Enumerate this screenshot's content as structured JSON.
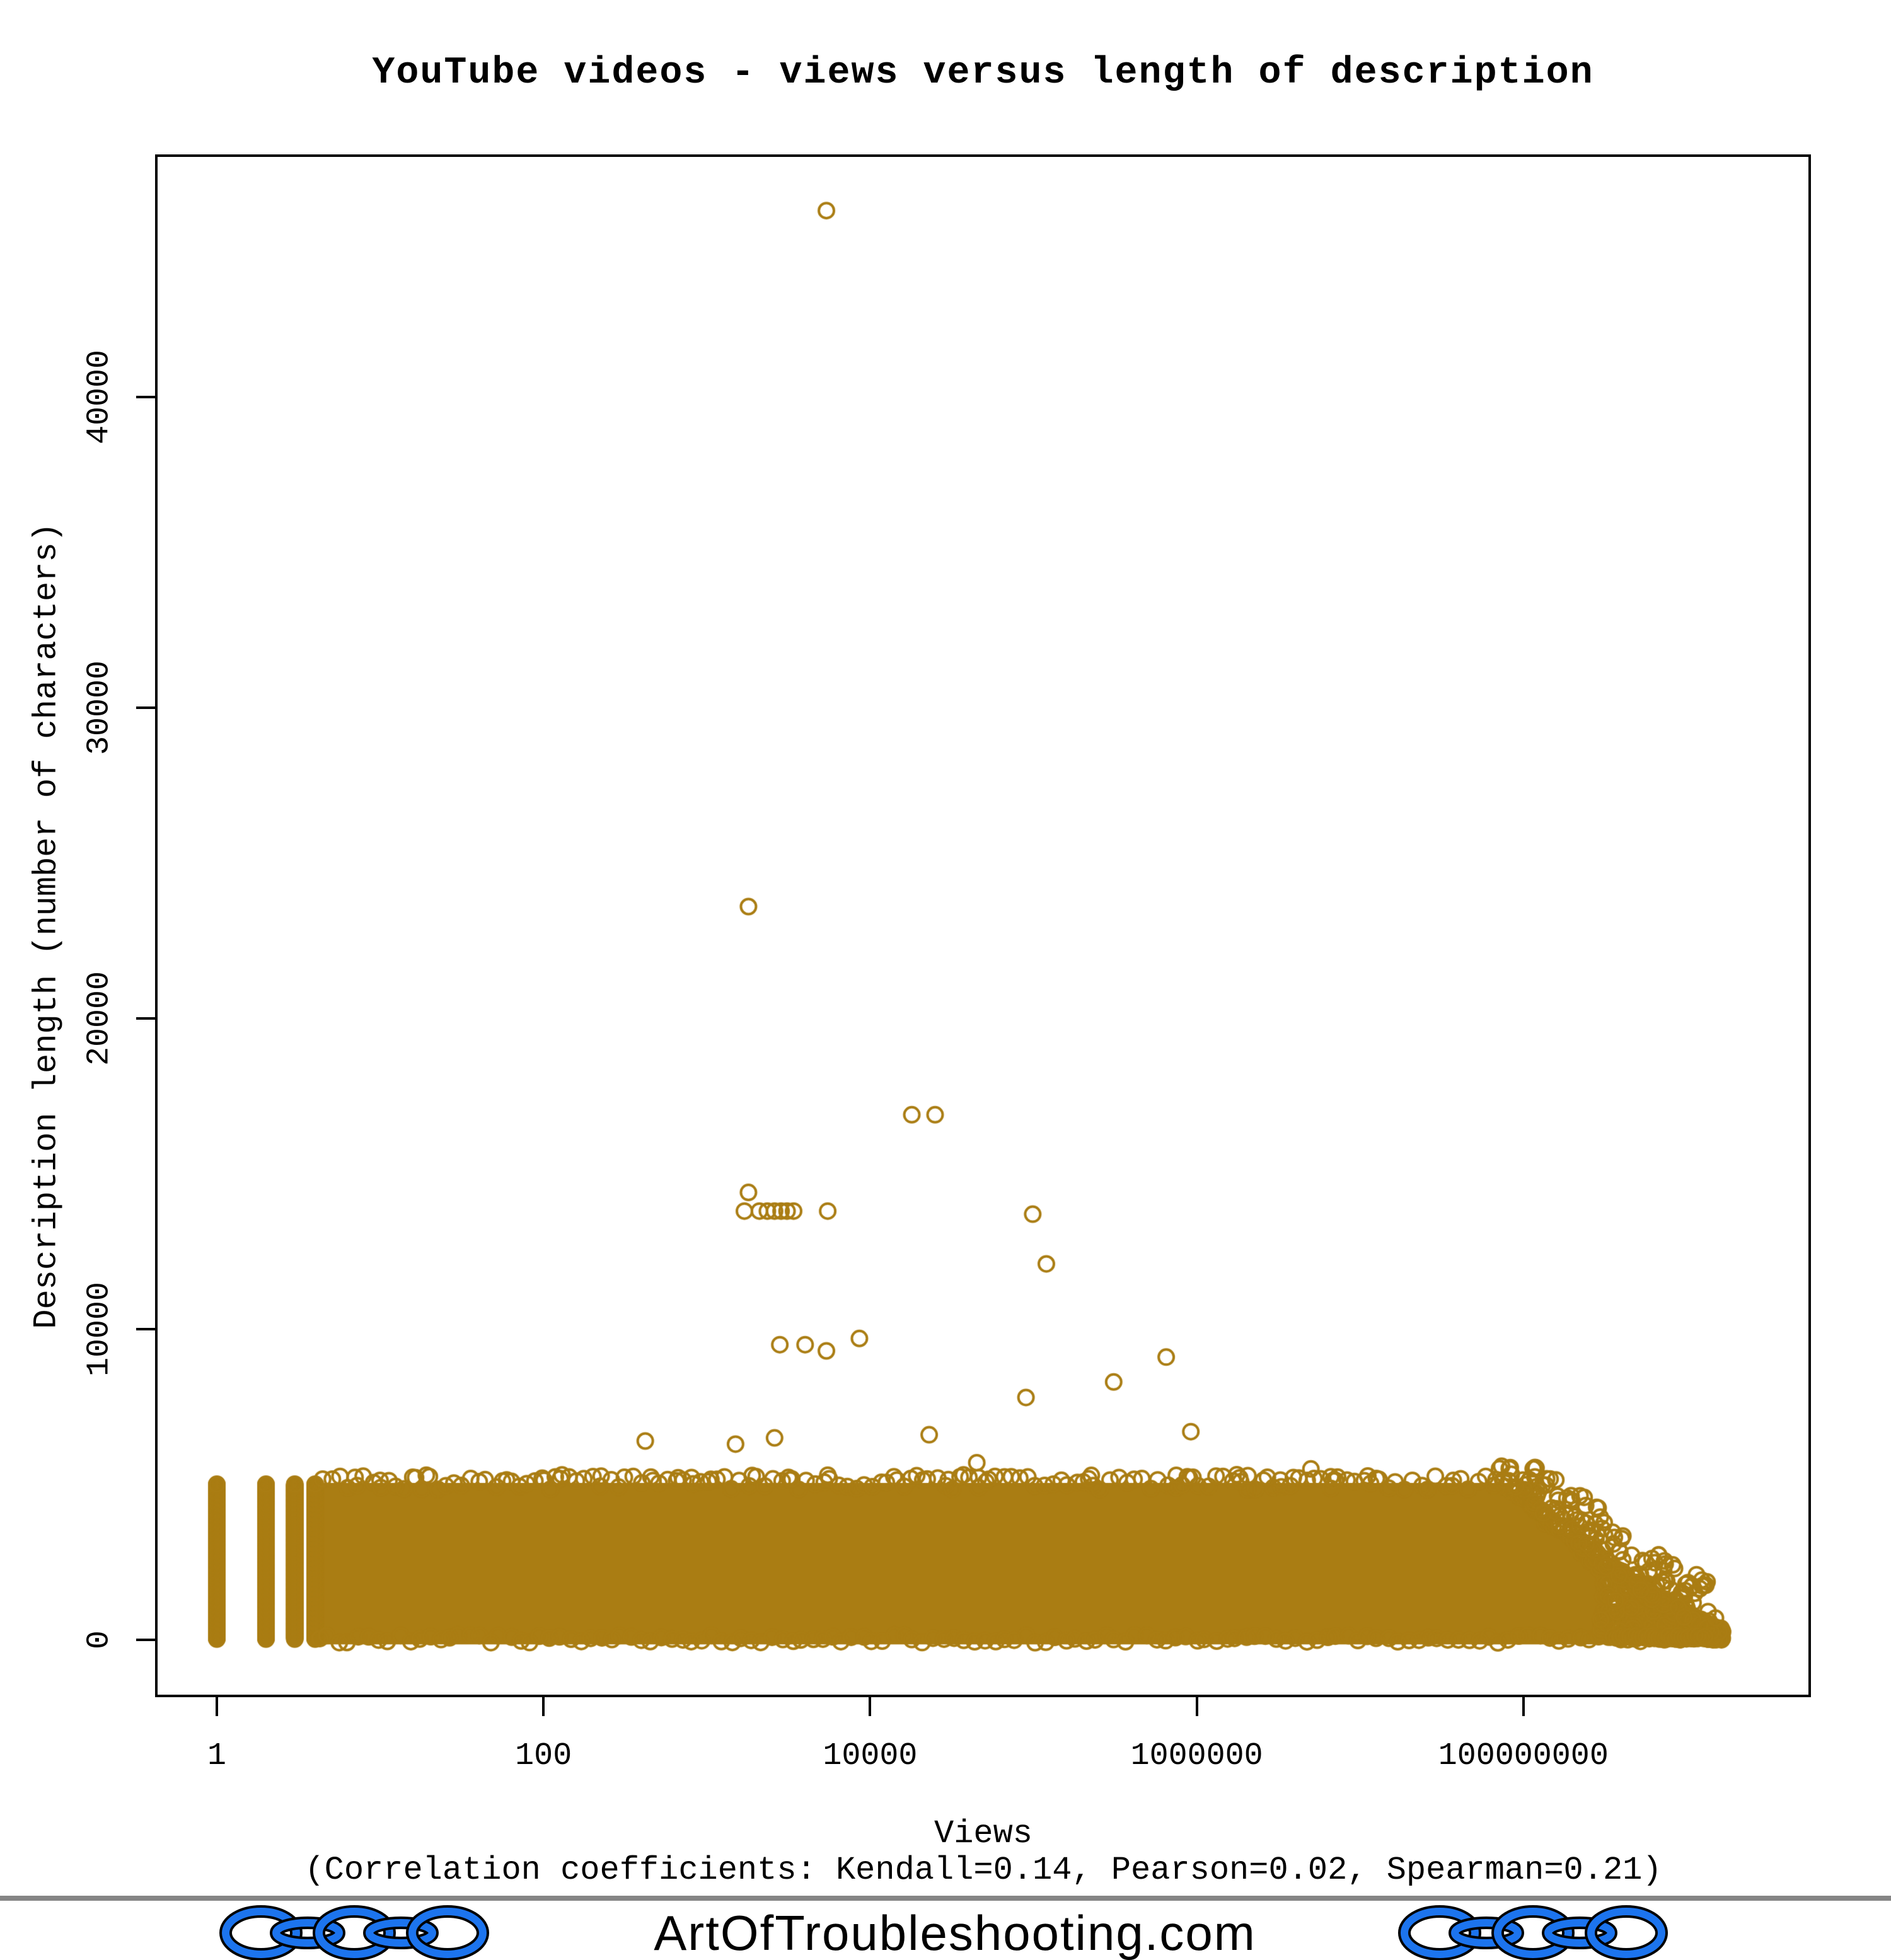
{
  "title": "YouTube videos - views versus length of description",
  "footer": {
    "site": "ArtOfTroubleshooting.com",
    "chain_color": "#1C74EE",
    "divider_color": "#858585"
  },
  "chart_data": {
    "type": "scatter",
    "title": "YouTube videos - views versus length of description",
    "xlabel": "Views",
    "x_sublabel": "(Correlation coefficients: Kendall=0.14, Pearson=0.02, Spearman=0.21)",
    "ylabel": "Description length (number of characters)",
    "correlations": {
      "kendall": 0.14,
      "pearson": 0.02,
      "spearman": 0.21
    },
    "x_scale": "log",
    "grid": false,
    "legend": false,
    "point_style": "open-circle",
    "point_color": "#AA7D13",
    "x_ticks": [
      1,
      100,
      10000,
      1000000,
      100000000
    ],
    "x_tick_labels": [
      "1",
      "100",
      "10000",
      "1000000",
      "100000000"
    ],
    "y_ticks": [
      0,
      10000,
      20000,
      30000,
      40000
    ],
    "y_tick_labels": [
      "0",
      "10000",
      "20000",
      "30000",
      "40000"
    ],
    "x_range_views": [
      0.42,
      5800000000
    ],
    "y_range_chars": [
      -1800,
      47800
    ],
    "dense_band": {
      "description": "solid mass of overlapping open circles",
      "views_min": 1,
      "views_max": 400000000,
      "chars_min": 0,
      "chars_max": 5100,
      "integer_view_stripes": [
        1,
        2,
        3,
        4
      ],
      "full_height_until_views": 80000000,
      "taper_end_views": 1700000000
    },
    "outliers": [
      {
        "views": 5400,
        "chars": 46000
      },
      {
        "views": 1800,
        "chars": 23600
      },
      {
        "views": 18000,
        "chars": 16900
      },
      {
        "views": 25000,
        "chars": 16900
      },
      {
        "views": 1800,
        "chars": 14400
      },
      {
        "views": 1700,
        "chars": 13800
      },
      {
        "views": 2100,
        "chars": 13800
      },
      {
        "views": 2350,
        "chars": 13800
      },
      {
        "views": 2600,
        "chars": 13800
      },
      {
        "views": 2850,
        "chars": 13800
      },
      {
        "views": 3100,
        "chars": 13800
      },
      {
        "views": 3400,
        "chars": 13800
      },
      {
        "views": 5500,
        "chars": 13800
      },
      {
        "views": 99000,
        "chars": 13700
      },
      {
        "views": 120000,
        "chars": 12100
      },
      {
        "views": 2800,
        "chars": 9500
      },
      {
        "views": 4000,
        "chars": 9500
      },
      {
        "views": 5400,
        "chars": 9300
      },
      {
        "views": 8600,
        "chars": 9700
      },
      {
        "views": 90000,
        "chars": 7800
      },
      {
        "views": 310000,
        "chars": 8300
      },
      {
        "views": 650000,
        "chars": 9100
      },
      {
        "views": 920000,
        "chars": 6700
      },
      {
        "views": 420,
        "chars": 6400
      },
      {
        "views": 1500,
        "chars": 6300
      },
      {
        "views": 2600,
        "chars": 6500
      },
      {
        "views": 23000,
        "chars": 6600
      },
      {
        "views": 45000,
        "chars": 5700
      },
      {
        "views": 5000000,
        "chars": 5500
      },
      {
        "views": 1500000000,
        "chars": 700
      }
    ]
  }
}
